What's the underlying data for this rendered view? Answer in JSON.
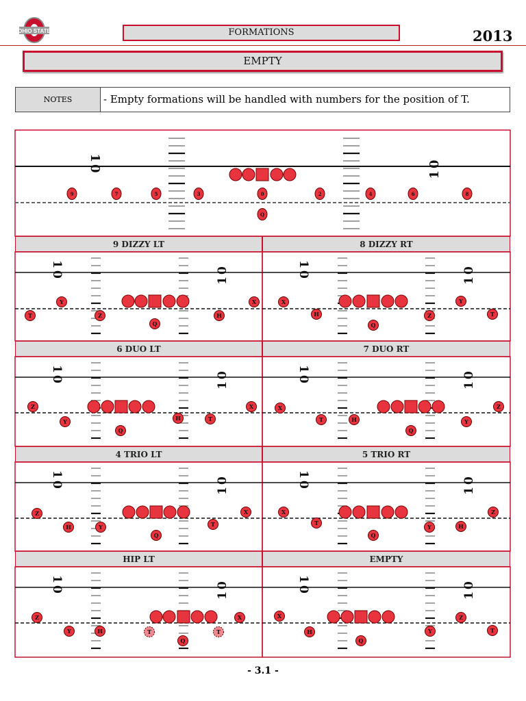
{
  "header": {
    "section": "FORMATIONS",
    "year": "2013",
    "logo_text": "OHIO STATE"
  },
  "title": "EMPTY",
  "notes": {
    "label": "NOTES",
    "text": "- Empty formations will be handled with numbers for the position of T."
  },
  "field": {
    "yard_number": "10"
  },
  "colors": {
    "accent": "#c8102e",
    "player_fill": "#e8343f",
    "header_bg": "#dcdcdc"
  },
  "panels": [
    {
      "title": "",
      "players": [
        "9",
        "7",
        "5",
        "3",
        "0",
        "2",
        "4",
        "6",
        "8",
        "Q"
      ]
    },
    {
      "title": "9 DIZZY LT",
      "players": [
        "Y",
        "X",
        "T",
        "Z",
        "H",
        "Q"
      ]
    },
    {
      "title": "8 DIZZY RT",
      "players": [
        "X",
        "Y",
        "H",
        "Z",
        "T",
        "Q"
      ]
    },
    {
      "title": "6 DUO LT",
      "players": [
        "Z",
        "X",
        "Y",
        "H",
        "T",
        "Q"
      ]
    },
    {
      "title": "7 DUO RT",
      "players": [
        "X",
        "Z",
        "T",
        "H",
        "Q",
        "Y"
      ]
    },
    {
      "title": "4 TRIO LT",
      "players": [
        "Z",
        "X",
        "H",
        "Y",
        "T",
        "Q"
      ]
    },
    {
      "title": "5 TRIO RT",
      "players": [
        "X",
        "Z",
        "T",
        "Y",
        "H",
        "Q"
      ]
    },
    {
      "title": "HIP LT",
      "players": [
        "Z",
        "X",
        "Y",
        "H",
        "T",
        "T",
        "Q"
      ]
    },
    {
      "title": "EMPTY",
      "players": [
        "X",
        "Z",
        "H",
        "Q",
        "Y",
        "T"
      ]
    }
  ],
  "footer": {
    "page": "- 3.1 -"
  }
}
